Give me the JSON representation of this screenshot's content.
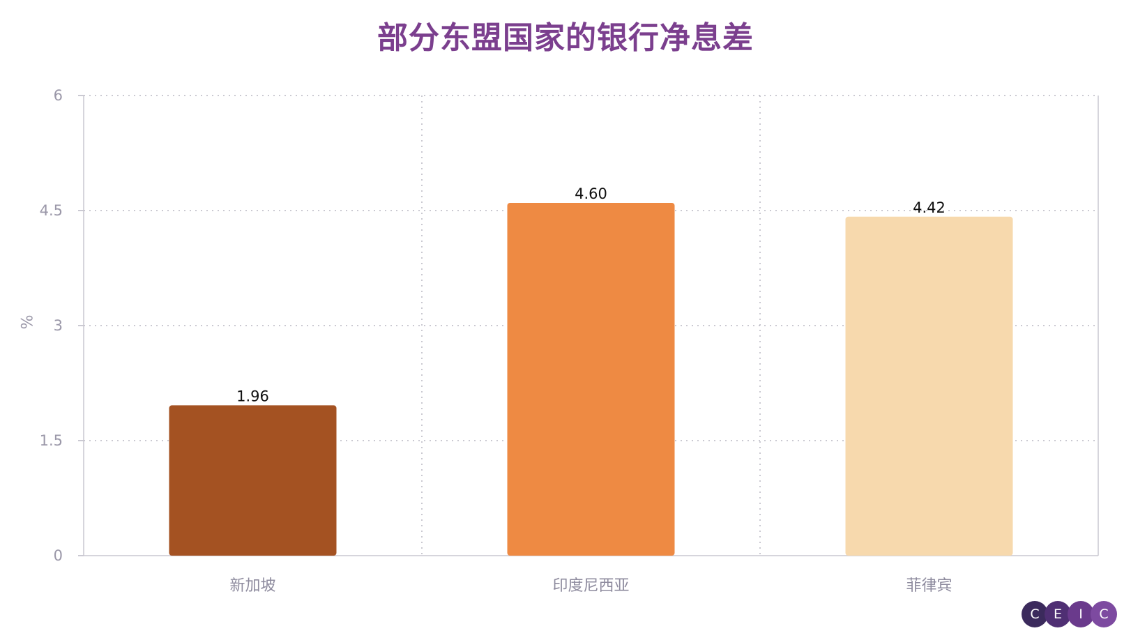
{
  "chart_data": {
    "type": "bar",
    "title": "部分东盟国家的银行净息差",
    "ylabel": "%",
    "xlabel": "",
    "categories": [
      "新加坡",
      "印度尼西亚",
      "菲律宾"
    ],
    "values": [
      1.96,
      4.6,
      4.42
    ],
    "value_labels": [
      "1.96",
      "4.60",
      "4.42"
    ],
    "colors": [
      "#a45222",
      "#ee8a43",
      "#f7d9ad"
    ],
    "ylim": [
      0,
      6
    ],
    "yticks": [
      0,
      1.5,
      3,
      4.5,
      6
    ],
    "ytick_labels": [
      "0",
      "1.5",
      "3",
      "4.5",
      "6"
    ],
    "grid": true,
    "legend": "none"
  },
  "logo": {
    "letters": [
      "C",
      "E",
      "I",
      "C"
    ],
    "colors": [
      "#3b2a5c",
      "#4f2f73",
      "#6a3a8c",
      "#7d4aa0"
    ]
  }
}
